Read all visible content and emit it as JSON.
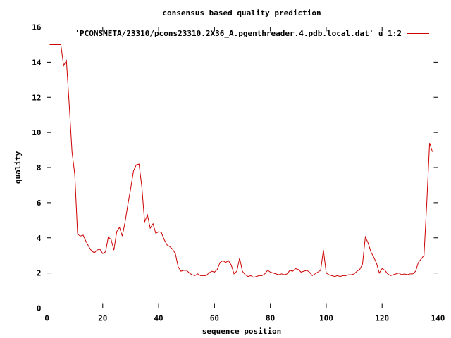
{
  "chart_data": {
    "type": "line",
    "title": "consensus based quality prediction",
    "xlabel": "sequence position",
    "ylabel": "quality",
    "xlim": [
      0,
      140
    ],
    "ylim": [
      0,
      16
    ],
    "xticks": [
      0,
      20,
      40,
      60,
      80,
      100,
      120,
      140
    ],
    "yticks": [
      0,
      2,
      4,
      6,
      8,
      10,
      12,
      14,
      16
    ],
    "grid": false,
    "legend_position": "top-right",
    "series": [
      {
        "name": "'PCONSMETA/23310/pcons23310.2X36_A.pgenthreader.4.pdb.local.dat' u 1:2",
        "color": "#cc0000",
        "x": [
          1,
          2,
          3,
          4,
          5,
          6,
          7,
          8,
          9,
          10,
          11,
          12,
          13,
          14,
          15,
          16,
          17,
          18,
          19,
          20,
          21,
          22,
          23,
          24,
          25,
          26,
          27,
          28,
          29,
          30,
          31,
          32,
          33,
          34,
          35,
          36,
          37,
          38,
          39,
          40,
          41,
          42,
          43,
          44,
          45,
          46,
          47,
          48,
          49,
          50,
          51,
          52,
          53,
          54,
          55,
          56,
          57,
          58,
          59,
          60,
          61,
          62,
          63,
          64,
          65,
          66,
          67,
          68,
          69,
          70,
          71,
          72,
          73,
          74,
          75,
          76,
          77,
          78,
          79,
          80,
          81,
          82,
          83,
          84,
          85,
          86,
          87,
          88,
          89,
          90,
          91,
          92,
          93,
          94,
          95,
          96,
          97,
          98,
          99,
          100,
          101,
          102,
          103,
          104,
          105,
          106,
          107,
          108,
          109,
          110,
          111,
          112,
          113,
          114,
          115,
          116,
          117,
          118,
          119,
          120,
          121,
          122,
          123,
          124,
          125,
          126,
          127,
          128,
          129,
          130,
          131,
          132,
          133,
          134,
          135,
          136,
          137,
          138
        ],
        "y": [
          15.0,
          15.0,
          15.0,
          15.0,
          15.0,
          13.8,
          14.1,
          11.6,
          8.9,
          7.6,
          4.2,
          4.1,
          4.15,
          3.8,
          3.5,
          3.25,
          3.15,
          3.3,
          3.35,
          3.1,
          3.2,
          4.05,
          3.9,
          3.3,
          4.35,
          4.6,
          4.1,
          4.9,
          5.9,
          6.8,
          7.8,
          8.15,
          8.2,
          6.9,
          4.9,
          5.3,
          4.55,
          4.8,
          4.25,
          4.35,
          4.3,
          3.9,
          3.6,
          3.5,
          3.35,
          3.1,
          2.35,
          2.1,
          2.15,
          2.15,
          2.0,
          1.9,
          1.85,
          1.95,
          1.85,
          1.85,
          1.85,
          2.0,
          2.1,
          2.05,
          2.2,
          2.6,
          2.7,
          2.6,
          2.7,
          2.45,
          1.95,
          2.1,
          2.85,
          2.1,
          1.9,
          1.8,
          1.85,
          1.75,
          1.8,
          1.85,
          1.85,
          1.95,
          2.15,
          2.05,
          2.0,
          1.95,
          1.9,
          1.95,
          1.9,
          1.95,
          2.15,
          2.1,
          2.25,
          2.2,
          2.05,
          2.1,
          2.15,
          2.05,
          1.85,
          1.95,
          2.05,
          2.15,
          3.3,
          2.0,
          1.9,
          1.85,
          1.8,
          1.85,
          1.8,
          1.85,
          1.85,
          1.9,
          1.9,
          1.95,
          2.1,
          2.2,
          2.5,
          4.05,
          3.7,
          3.2,
          2.9,
          2.55,
          2.0,
          2.25,
          2.15,
          1.95,
          1.85,
          1.9,
          1.95,
          2.0,
          1.9,
          1.95,
          1.9,
          1.95,
          1.95,
          2.1,
          2.6,
          2.8,
          3.0,
          6.0,
          9.4,
          8.9
        ]
      }
    ]
  }
}
